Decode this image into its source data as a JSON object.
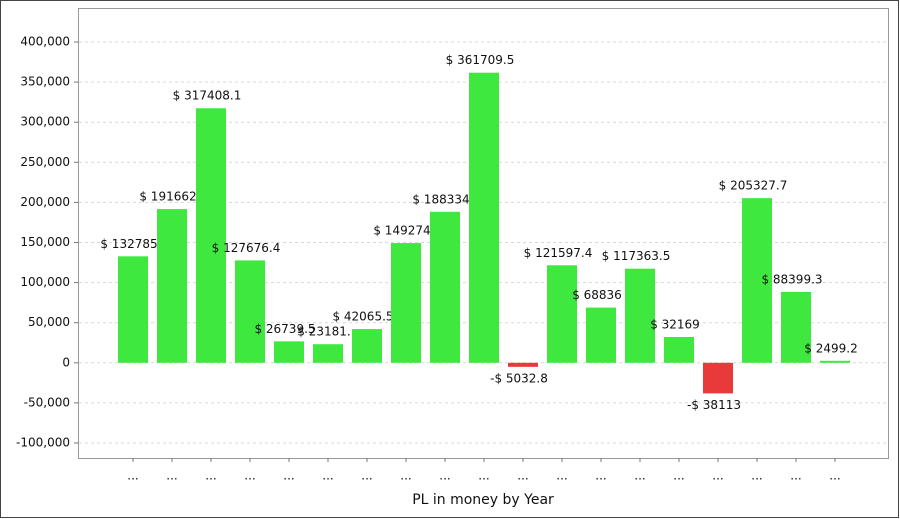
{
  "chart_data": {
    "type": "bar",
    "x_label": "PL in money by Year",
    "categories": [
      "...",
      "...",
      "...",
      "...",
      "...",
      "...",
      "...",
      "...",
      "...",
      "...",
      "...",
      "...",
      "...",
      "...",
      "...",
      "...",
      "...",
      "...",
      "..."
    ],
    "values": [
      132785,
      191662,
      317408.1,
      127676.4,
      26739.5,
      23181,
      42065.5,
      149274,
      188334,
      361709.5,
      -5032.8,
      121597.4,
      68836,
      117363.5,
      32169,
      -38113,
      205327.7,
      88399.3,
      2499.2
    ],
    "value_labels": [
      "$ 132785",
      "$ 191662",
      "$ 317408.1",
      "$ 127676.4",
      "$ 26739.5",
      "$ 23181.",
      "$ 42065.5",
      "$ 149274",
      "$ 188334",
      "$ 361709.5",
      "-$ 5032.8",
      "$ 121597.4",
      "$ 68836",
      "$ 117363.5",
      "$ 32169",
      "-$ 38113",
      "$ 205327.7",
      "$ 88399.3",
      "$ 2499.2"
    ],
    "color": "#3fe83f",
    "negative_color": "#e8393b",
    "ylim": [
      -118700,
      442400
    ],
    "yticks": [
      {
        "value": -100000,
        "label": "-100,000"
      },
      {
        "value": -50000,
        "label": "-50,000"
      },
      0,
      {
        "value": 50000,
        "label": "50,000"
      },
      {
        "value": 100000,
        "label": "100,000"
      },
      {
        "value": 150000,
        "label": "150,000"
      },
      {
        "value": 200000,
        "label": "200,000"
      },
      {
        "value": 250000,
        "label": "250,000"
      },
      {
        "value": 300000,
        "label": "300,000"
      },
      {
        "value": 350000,
        "label": "350,000"
      },
      {
        "value": 400000,
        "label": "400,000"
      }
    ],
    "grid": true
  }
}
